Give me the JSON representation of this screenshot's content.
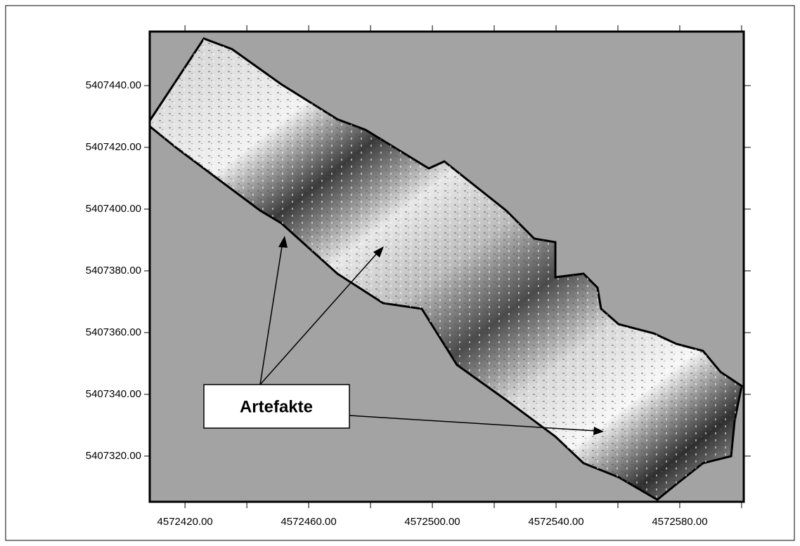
{
  "chart_data": {
    "type": "map",
    "xlim": [
      4572408.6,
      4572600.7
    ],
    "ylim": [
      5407305.2,
      5407457.5
    ],
    "xticks": [
      {
        "value": 4572420,
        "label": "4572420.00"
      },
      {
        "value": 4572460,
        "label": "4572460.00"
      },
      {
        "value": 4572500,
        "label": "4572500.00"
      },
      {
        "value": 4572540,
        "label": "4572540.00"
      },
      {
        "value": 4572580,
        "label": "4572580.00"
      }
    ],
    "xminorticks": [
      4572440,
      4572480,
      4572520,
      4572560,
      4572600
    ],
    "yticks": [
      {
        "value": 5407320,
        "label": "5407320.00"
      },
      {
        "value": 5407340,
        "label": "5407340.00"
      },
      {
        "value": 5407360,
        "label": "5407360.00"
      },
      {
        "value": 5407380,
        "label": "5407380.00"
      },
      {
        "value": 5407400,
        "label": "5407400.00"
      },
      {
        "value": 5407420,
        "label": "5407420.00"
      },
      {
        "value": 5407440,
        "label": "5407440.00"
      }
    ],
    "background": "#a3a3a3",
    "annotation": "Artefakte"
  }
}
